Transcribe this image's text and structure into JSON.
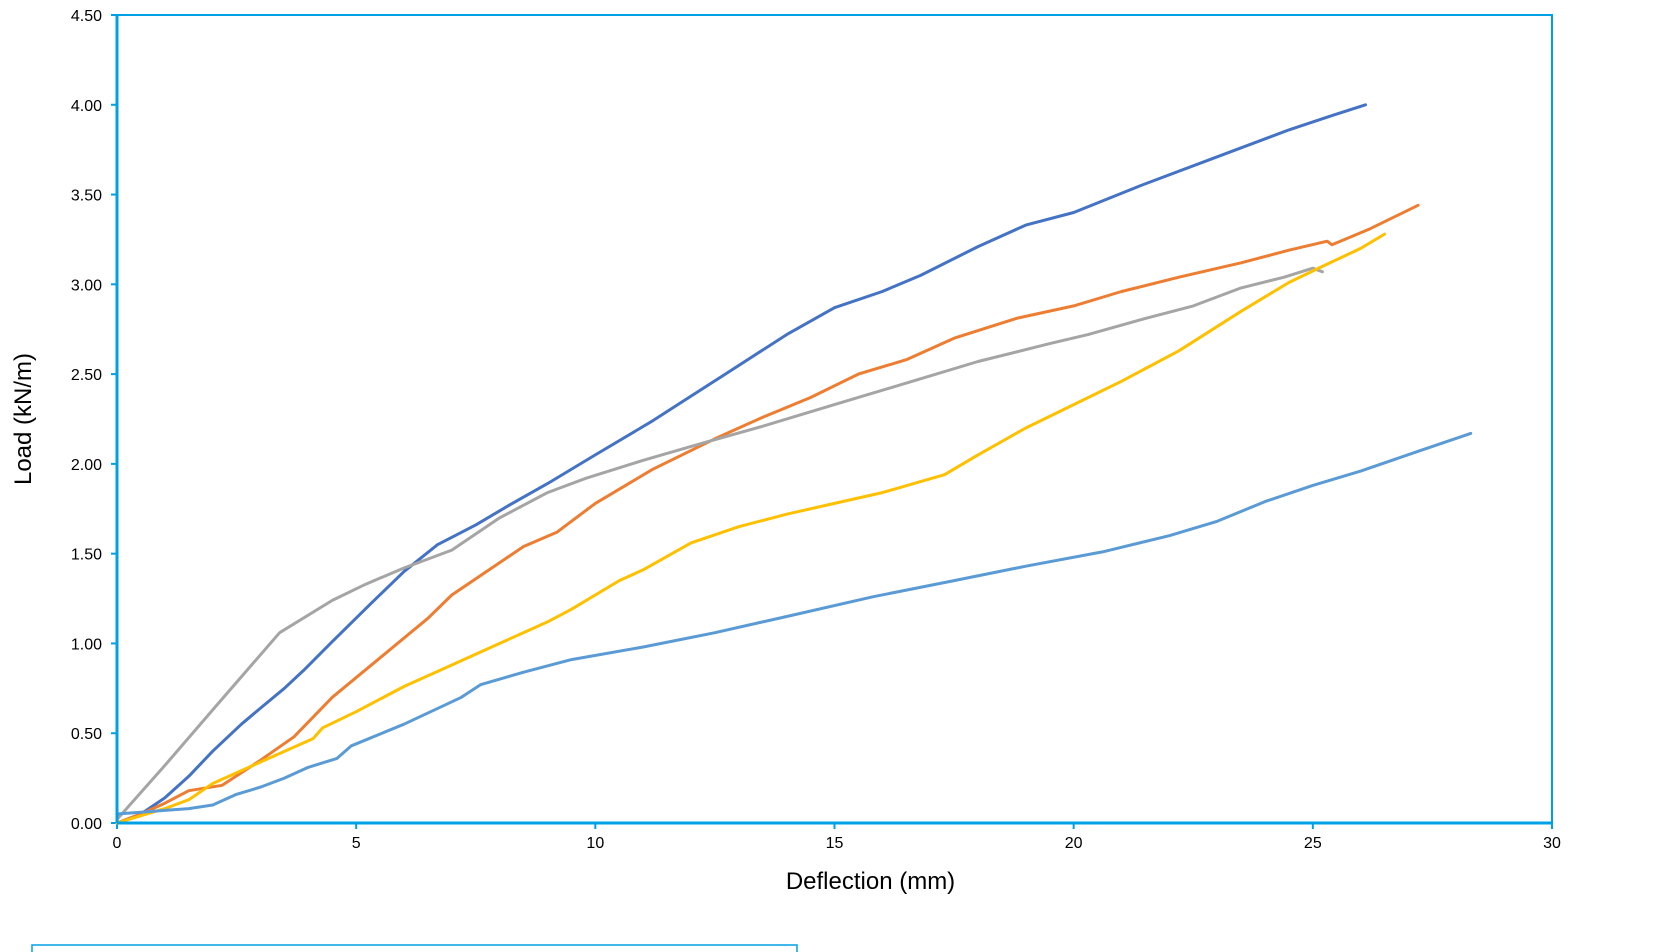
{
  "chart_data": {
    "type": "line",
    "title": "",
    "xlabel": "Deflection (mm)",
    "ylabel": "Load (kN/m)",
    "xlim": [
      0,
      30
    ],
    "ylim": [
      0,
      4.5
    ],
    "x_ticks": [
      "0",
      "5",
      "10",
      "15",
      "20",
      "25",
      "30"
    ],
    "y_ticks": [
      "0.00",
      "0.50",
      "1.00",
      "1.50",
      "2.00",
      "2.50",
      "3.00",
      "3.50",
      "4.00",
      "4.50"
    ],
    "grid": false,
    "legend": "none",
    "frame_color": "#00a0e6",
    "series": [
      {
        "color": "#4472c4",
        "points": [
          [
            0,
            0
          ],
          [
            0.5,
            0.05
          ],
          [
            1,
            0.14
          ],
          [
            1.5,
            0.26
          ],
          [
            2,
            0.4
          ],
          [
            2.6,
            0.55
          ],
          [
            3,
            0.64
          ],
          [
            3.5,
            0.75
          ],
          [
            3.9,
            0.85
          ],
          [
            4.5,
            1.01
          ],
          [
            5.3,
            1.22
          ],
          [
            6,
            1.4
          ],
          [
            6.7,
            1.55
          ],
          [
            7.5,
            1.66
          ],
          [
            8.2,
            1.77
          ],
          [
            9,
            1.89
          ],
          [
            10,
            2.05
          ],
          [
            11.2,
            2.24
          ],
          [
            12.6,
            2.48
          ],
          [
            14,
            2.72
          ],
          [
            15,
            2.87
          ],
          [
            16,
            2.96
          ],
          [
            16.8,
            3.05
          ],
          [
            18,
            3.21
          ],
          [
            19,
            3.33
          ],
          [
            20,
            3.4
          ],
          [
            21.4,
            3.55
          ],
          [
            23,
            3.71
          ],
          [
            24.5,
            3.86
          ],
          [
            25.4,
            3.94
          ],
          [
            26.1,
            4.0
          ]
        ]
      },
      {
        "color": "#ed7d31",
        "points": [
          [
            0,
            0
          ],
          [
            0.5,
            0.05
          ],
          [
            1,
            0.11
          ],
          [
            1.5,
            0.18
          ],
          [
            2.2,
            0.21
          ],
          [
            3,
            0.35
          ],
          [
            3.7,
            0.48
          ],
          [
            4.5,
            0.7
          ],
          [
            5.5,
            0.92
          ],
          [
            6.5,
            1.14
          ],
          [
            7,
            1.27
          ],
          [
            8,
            1.45
          ],
          [
            8.5,
            1.54
          ],
          [
            9.2,
            1.62
          ],
          [
            10,
            1.78
          ],
          [
            11.2,
            1.97
          ],
          [
            12.5,
            2.14
          ],
          [
            13.5,
            2.26
          ],
          [
            14.5,
            2.37
          ],
          [
            15.5,
            2.5
          ],
          [
            16.5,
            2.58
          ],
          [
            17.5,
            2.7
          ],
          [
            18.8,
            2.81
          ],
          [
            20,
            2.88
          ],
          [
            21,
            2.96
          ],
          [
            22.2,
            3.04
          ],
          [
            23.5,
            3.12
          ],
          [
            24.5,
            3.19
          ],
          [
            25.3,
            3.24
          ],
          [
            25.4,
            3.22
          ],
          [
            26.2,
            3.31
          ],
          [
            27.2,
            3.44
          ]
        ]
      },
      {
        "color": "#a5a5a5",
        "points": [
          [
            0,
            0.02
          ],
          [
            1,
            0.32
          ],
          [
            2,
            0.63
          ],
          [
            3.4,
            1.06
          ],
          [
            4.5,
            1.24
          ],
          [
            5.2,
            1.33
          ],
          [
            6,
            1.42
          ],
          [
            7,
            1.52
          ],
          [
            8,
            1.7
          ],
          [
            9,
            1.84
          ],
          [
            9.8,
            1.92
          ],
          [
            11,
            2.02
          ],
          [
            12.3,
            2.12
          ],
          [
            13.5,
            2.21
          ],
          [
            15,
            2.33
          ],
          [
            16.5,
            2.45
          ],
          [
            18,
            2.57
          ],
          [
            19.5,
            2.67
          ],
          [
            20.3,
            2.72
          ],
          [
            21.5,
            2.81
          ],
          [
            22.5,
            2.88
          ],
          [
            23.5,
            2.98
          ],
          [
            24.4,
            3.04
          ],
          [
            25,
            3.09
          ],
          [
            25.2,
            3.07
          ]
        ]
      },
      {
        "color": "#ffc000",
        "points": [
          [
            0,
            0
          ],
          [
            1,
            0.08
          ],
          [
            1.5,
            0.13
          ],
          [
            2,
            0.22
          ],
          [
            3,
            0.34
          ],
          [
            4.1,
            0.47
          ],
          [
            4.3,
            0.53
          ],
          [
            5,
            0.62
          ],
          [
            6,
            0.76
          ],
          [
            7,
            0.88
          ],
          [
            8,
            1.0
          ],
          [
            9,
            1.12
          ],
          [
            9.5,
            1.19
          ],
          [
            10.5,
            1.35
          ],
          [
            11,
            1.41
          ],
          [
            12,
            1.56
          ],
          [
            13,
            1.65
          ],
          [
            14,
            1.72
          ],
          [
            15,
            1.78
          ],
          [
            16,
            1.84
          ],
          [
            17.3,
            1.94
          ],
          [
            18,
            2.05
          ],
          [
            19,
            2.2
          ],
          [
            20,
            2.33
          ],
          [
            21,
            2.46
          ],
          [
            22.2,
            2.63
          ],
          [
            23.5,
            2.85
          ],
          [
            24.5,
            3.01
          ],
          [
            25.2,
            3.1
          ],
          [
            26,
            3.2
          ],
          [
            26.5,
            3.28
          ]
        ]
      },
      {
        "color": "#5b9bd5",
        "points": [
          [
            0,
            0.05
          ],
          [
            0.5,
            0.06
          ],
          [
            1,
            0.07
          ],
          [
            1.5,
            0.08
          ],
          [
            2,
            0.1
          ],
          [
            2.5,
            0.16
          ],
          [
            3,
            0.2
          ],
          [
            3.5,
            0.25
          ],
          [
            4,
            0.31
          ],
          [
            4.6,
            0.36
          ],
          [
            4.9,
            0.43
          ],
          [
            6,
            0.55
          ],
          [
            7.2,
            0.7
          ],
          [
            7.6,
            0.77
          ],
          [
            8.5,
            0.84
          ],
          [
            9.5,
            0.91
          ],
          [
            11,
            0.98
          ],
          [
            12.5,
            1.06
          ],
          [
            14,
            1.15
          ],
          [
            15.8,
            1.26
          ],
          [
            17.5,
            1.35
          ],
          [
            19,
            1.43
          ],
          [
            20.6,
            1.51
          ],
          [
            22,
            1.6
          ],
          [
            23,
            1.68
          ],
          [
            24,
            1.79
          ],
          [
            25,
            1.88
          ],
          [
            26,
            1.96
          ],
          [
            27.2,
            2.07
          ],
          [
            28.3,
            2.17
          ]
        ]
      }
    ]
  }
}
